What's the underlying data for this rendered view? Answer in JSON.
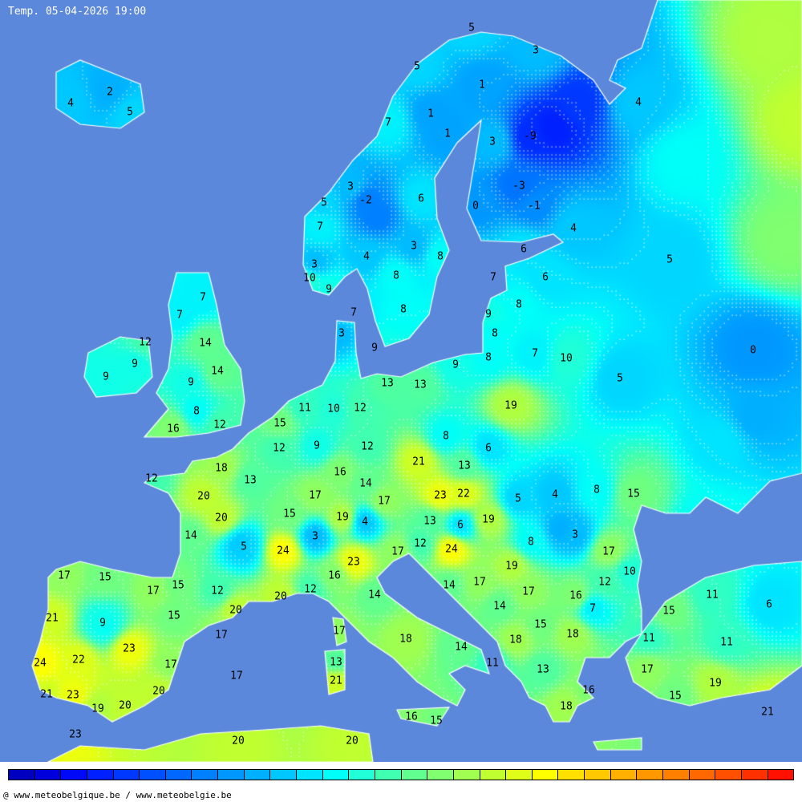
{
  "title": "Temp. 05-04-2026 19:00",
  "footer": "@ www.meteobelgique.be / www.meteobelgie.be",
  "colors": {
    "sea": "#5b88da",
    "coast": "#ffffff",
    "text": "#000000"
  },
  "colorbar": [
    "#0000c0",
    "#0000dc",
    "#0008f8",
    "#0020ff",
    "#0038ff",
    "#0050ff",
    "#0068ff",
    "#0080ff",
    "#0098ff",
    "#00b0ff",
    "#00c8ff",
    "#00e4ff",
    "#00fff8",
    "#20ffd8",
    "#40ffb0",
    "#60ff90",
    "#80ff70",
    "#a0ff50",
    "#c0ff30",
    "#e0ff18",
    "#ffff00",
    "#ffe000",
    "#ffc800",
    "#ffb000",
    "#ff9800",
    "#ff8000",
    "#ff6800",
    "#ff5000",
    "#ff3000",
    "#ff1000"
  ],
  "stations": [
    "3",
    "5",
    "5",
    "1",
    "4",
    "1",
    "1",
    "3",
    "-9",
    "2",
    "4",
    "5",
    "7",
    "3",
    "-2",
    "6",
    "-3",
    "0",
    "-1",
    "5",
    "7",
    "4",
    "3",
    "6",
    "4",
    "8",
    "5",
    "3",
    "10",
    "7",
    "6",
    "8",
    "9",
    "7",
    "8",
    "7",
    "7",
    "8",
    "9",
    "3",
    "8",
    "12",
    "14",
    "9",
    "0",
    "8",
    "7",
    "10",
    "9",
    "9",
    "9",
    "14",
    "5",
    "13",
    "13",
    "9",
    "19",
    "11",
    "10",
    "12",
    "8",
    "15",
    "12",
    "16",
    "8",
    "9",
    "12",
    "6",
    "12",
    "21",
    "13",
    "18",
    "16",
    "12",
    "13",
    "14",
    "20",
    "17",
    "23",
    "22",
    "4",
    "8",
    "15",
    "17",
    "5",
    "20",
    "15",
    "19",
    "4",
    "13",
    "6",
    "19",
    "14",
    "5",
    "3",
    "8",
    "3",
    "24",
    "24",
    "12",
    "17",
    "17",
    "23",
    "19",
    "17",
    "15",
    "15",
    "17",
    "16",
    "14",
    "17",
    "12",
    "10",
    "12",
    "12",
    "20",
    "17",
    "16",
    "11",
    "6",
    "14",
    "14",
    "7",
    "15",
    "21",
    "9",
    "15",
    "20",
    "15",
    "11",
    "11",
    "17",
    "17",
    "18",
    "14",
    "18",
    "18",
    "23",
    "24",
    "22",
    "17",
    "13",
    "11",
    "13",
    "17",
    "17",
    "21",
    "19",
    "20",
    "21",
    "23",
    "16",
    "15",
    "19",
    "20",
    "18",
    "16",
    "15",
    "21",
    "23",
    "20",
    "20"
  ]
}
